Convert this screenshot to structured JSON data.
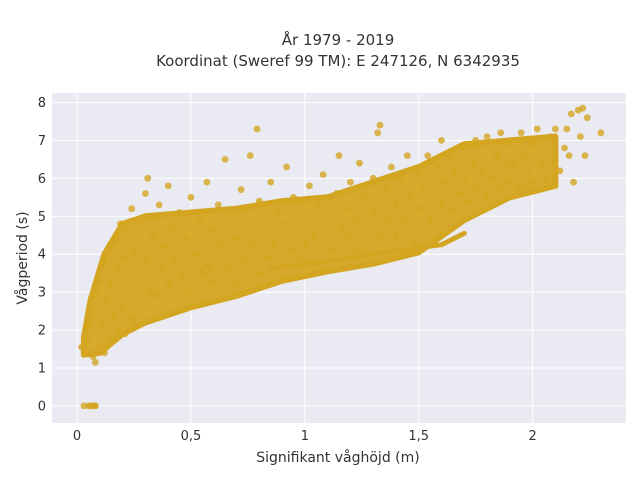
{
  "chart_data": {
    "type": "scatter",
    "title": {
      "line1": "År 1979 - 2019",
      "line2": "Koordinat (Sweref 99 TM): E 247126, N 6342935"
    },
    "xlabel": "Signifikant våghöjd (m)",
    "ylabel": "Vågperiod (s)",
    "xlim": [
      -0.11,
      2.41
    ],
    "ylim": [
      -0.45,
      8.25
    ],
    "x_ticks": [
      {
        "value": 0,
        "label": "0"
      },
      {
        "value": 0.5,
        "label": "0,5"
      },
      {
        "value": 1,
        "label": "1"
      },
      {
        "value": 1.5,
        "label": "1,5"
      },
      {
        "value": 2,
        "label": "2"
      }
    ],
    "y_ticks": [
      {
        "value": 0,
        "label": "0"
      },
      {
        "value": 1,
        "label": "1"
      },
      {
        "value": 2,
        "label": "2"
      },
      {
        "value": 3,
        "label": "3"
      },
      {
        "value": 4,
        "label": "4"
      },
      {
        "value": 5,
        "label": "5"
      },
      {
        "value": 6,
        "label": "6"
      },
      {
        "value": 7,
        "label": "7"
      },
      {
        "value": 8,
        "label": "8"
      }
    ],
    "grid": true,
    "legend": "none",
    "colors": {
      "marker": "#d4a520",
      "plot_background": "#e9eaf2",
      "grid": "#ffffff",
      "text": "#333333"
    },
    "series": [
      {
        "points": [
          [
            0.02,
            1.55
          ],
          [
            0.04,
            1.4
          ],
          [
            0.05,
            1.8
          ],
          [
            0.06,
            2.1
          ],
          [
            0.07,
            1.3
          ],
          [
            0.08,
            2.5
          ],
          [
            0.08,
            1.15
          ],
          [
            0.09,
            2.9
          ],
          [
            0.1,
            1.6
          ],
          [
            0.1,
            3.3
          ],
          [
            0.11,
            2.2
          ],
          [
            0.12,
            3.7
          ],
          [
            0.12,
            1.4
          ],
          [
            0.13,
            2.8
          ],
          [
            0.14,
            4.1
          ],
          [
            0.14,
            1.8
          ],
          [
            0.15,
            3.2
          ],
          [
            0.16,
            2.4
          ],
          [
            0.17,
            4.4
          ],
          [
            0.18,
            2.0
          ],
          [
            0.18,
            3.6
          ],
          [
            0.19,
            4.8
          ],
          [
            0.2,
            2.6
          ],
          [
            0.2,
            3.9
          ],
          [
            0.21,
            1.9
          ],
          [
            0.22,
            4.6
          ],
          [
            0.23,
            3.1
          ],
          [
            0.24,
            5.2
          ],
          [
            0.25,
            2.3
          ],
          [
            0.25,
            4.0
          ],
          [
            0.26,
            3.5
          ],
          [
            0.28,
            4.9
          ],
          [
            0.29,
            2.7
          ],
          [
            0.3,
            5.6
          ],
          [
            0.3,
            3.8
          ],
          [
            0.31,
            6.0
          ],
          [
            0.32,
            3.0
          ],
          [
            0.33,
            4.5
          ],
          [
            0.35,
            2.9
          ],
          [
            0.36,
            5.3
          ],
          [
            0.37,
            3.6
          ],
          [
            0.38,
            4.2
          ],
          [
            0.4,
            3.2
          ],
          [
            0.4,
            5.8
          ],
          [
            0.42,
            4.7
          ],
          [
            0.43,
            3.9
          ],
          [
            0.45,
            5.1
          ],
          [
            0.46,
            3.4
          ],
          [
            0.48,
            4.4
          ],
          [
            0.5,
            3.1
          ],
          [
            0.5,
            5.5
          ],
          [
            0.52,
            4.0
          ],
          [
            0.54,
            4.9
          ],
          [
            0.55,
            3.5
          ],
          [
            0.57,
            5.9
          ],
          [
            0.58,
            3.7
          ],
          [
            0.6,
            4.6
          ],
          [
            0.6,
            3.3
          ],
          [
            0.62,
            5.3
          ],
          [
            0.64,
            4.2
          ],
          [
            0.65,
            6.5
          ],
          [
            0.66,
            3.6
          ],
          [
            0.68,
            5.0
          ],
          [
            0.7,
            4.4
          ],
          [
            0.7,
            3.2
          ],
          [
            0.72,
            5.7
          ],
          [
            0.74,
            3.8
          ],
          [
            0.75,
            4.8
          ],
          [
            0.76,
            6.6
          ],
          [
            0.78,
            4.2
          ],
          [
            0.79,
            7.3
          ],
          [
            0.8,
            3.5
          ],
          [
            0.8,
            5.4
          ],
          [
            0.82,
            4.6
          ],
          [
            0.84,
            3.9
          ],
          [
            0.85,
            5.9
          ],
          [
            0.86,
            4.3
          ],
          [
            0.88,
            5.1
          ],
          [
            0.9,
            3.7
          ],
          [
            0.9,
            4.8
          ],
          [
            0.92,
            6.3
          ],
          [
            0.94,
            4.1
          ],
          [
            0.95,
            5.5
          ],
          [
            0.96,
            4.6
          ],
          [
            0.98,
            3.9
          ],
          [
            1.0,
            5.0
          ],
          [
            1.0,
            4.3
          ],
          [
            1.02,
            5.8
          ],
          [
            1.04,
            4.5
          ],
          [
            1.05,
            3.8
          ],
          [
            1.06,
            5.3
          ],
          [
            1.08,
            6.1
          ],
          [
            1.1,
            4.4
          ],
          [
            1.1,
            5.0
          ],
          [
            1.12,
            4.1
          ],
          [
            1.14,
            5.6
          ],
          [
            1.15,
            6.6
          ],
          [
            1.16,
            4.7
          ],
          [
            1.18,
            5.2
          ],
          [
            1.2,
            4.4
          ],
          [
            1.2,
            5.9
          ],
          [
            1.22,
            4.9
          ],
          [
            1.24,
            6.4
          ],
          [
            1.25,
            4.1
          ],
          [
            1.26,
            5.5
          ],
          [
            1.28,
            4.6
          ],
          [
            1.3,
            6.0
          ],
          [
            1.3,
            5.1
          ],
          [
            1.32,
            7.2
          ],
          [
            1.33,
            7.4
          ],
          [
            1.34,
            4.4
          ],
          [
            1.35,
            5.7
          ],
          [
            1.36,
            4.9
          ],
          [
            1.38,
            6.3
          ],
          [
            1.4,
            5.3
          ],
          [
            1.4,
            4.5
          ],
          [
            1.42,
            6.0
          ],
          [
            1.44,
            4.9
          ],
          [
            1.45,
            6.6
          ],
          [
            1.46,
            5.5
          ],
          [
            1.48,
            4.3
          ],
          [
            1.5,
            6.1
          ],
          [
            1.5,
            5.2
          ],
          [
            1.52,
            5.8
          ],
          [
            1.54,
            6.6
          ],
          [
            1.55,
            4.9
          ],
          [
            1.56,
            5.6
          ],
          [
            1.58,
            6.3
          ],
          [
            1.6,
            5.3
          ],
          [
            1.6,
            7.0
          ],
          [
            1.62,
            5.9
          ],
          [
            1.64,
            6.6
          ],
          [
            1.65,
            5.2
          ],
          [
            1.66,
            6.2
          ],
          [
            1.68,
            5.6
          ],
          [
            1.7,
            6.8
          ],
          [
            1.7,
            5.9
          ],
          [
            1.72,
            5.4
          ],
          [
            1.74,
            6.4
          ],
          [
            1.75,
            7.0
          ],
          [
            1.76,
            5.8
          ],
          [
            1.78,
            6.2
          ],
          [
            1.8,
            5.5
          ],
          [
            1.8,
            7.1
          ],
          [
            1.82,
            6.0
          ],
          [
            1.84,
            6.6
          ],
          [
            1.85,
            5.7
          ],
          [
            1.86,
            7.2
          ],
          [
            1.88,
            6.3
          ],
          [
            1.9,
            5.9
          ],
          [
            1.9,
            6.9
          ],
          [
            1.92,
            6.4
          ],
          [
            1.94,
            5.8
          ],
          [
            1.95,
            7.2
          ],
          [
            1.96,
            6.6
          ],
          [
            1.98,
            6.1
          ],
          [
            2.0,
            6.9
          ],
          [
            2.0,
            5.9
          ],
          [
            2.02,
            7.3
          ],
          [
            2.04,
            6.4
          ],
          [
            2.05,
            6.9
          ],
          [
            2.06,
            6.0
          ],
          [
            2.08,
            7.1
          ],
          [
            2.1,
            6.5
          ],
          [
            2.1,
            7.3
          ],
          [
            2.12,
            6.2
          ],
          [
            2.14,
            6.8
          ],
          [
            2.15,
            7.3
          ],
          [
            2.16,
            6.6
          ],
          [
            2.17,
            7.7
          ],
          [
            2.18,
            5.9
          ],
          [
            2.2,
            7.8
          ],
          [
            2.21,
            7.1
          ],
          [
            2.22,
            7.85
          ],
          [
            2.23,
            6.6
          ],
          [
            2.24,
            7.6
          ],
          [
            2.3,
            7.2
          ],
          [
            0.03,
            0.0
          ],
          [
            0.05,
            0.0
          ],
          [
            0.06,
            0.0
          ],
          [
            0.07,
            0.0
          ],
          [
            0.08,
            0.0
          ],
          [
            0.08,
            0.0
          ]
        ]
      }
    ]
  }
}
